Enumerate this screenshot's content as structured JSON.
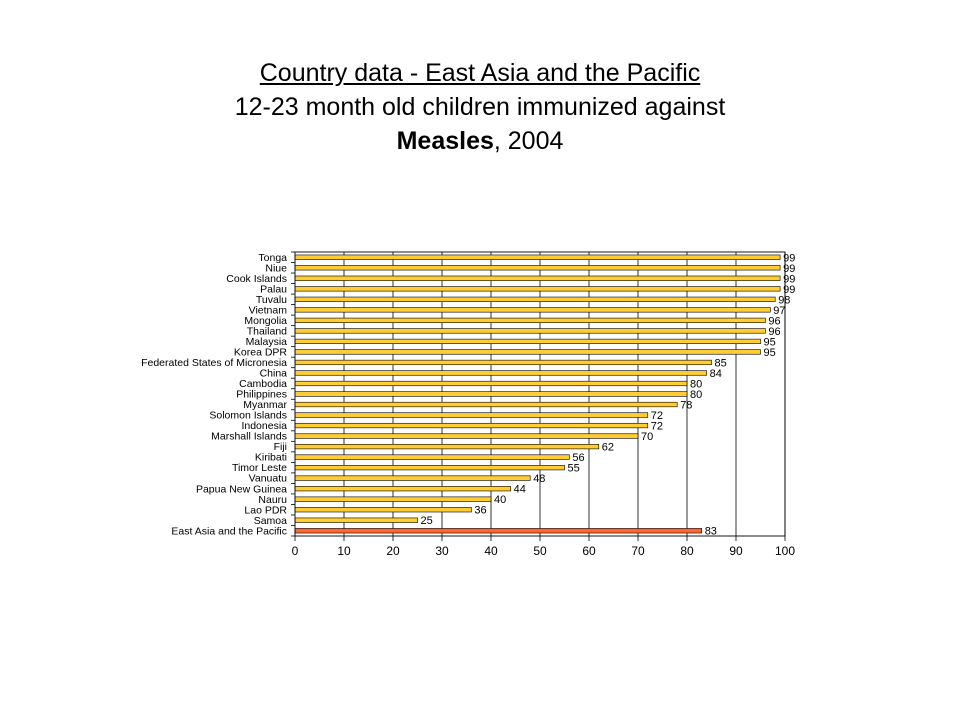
{
  "slide": {
    "title_line1": "Country data - East Asia and the Pacific",
    "title_line2": "12-23 month old children immunized against",
    "title_line3_bold": "Measles",
    "title_line3_rest": ", 2004"
  },
  "colors": {
    "bar_fill": "#ffcc33",
    "bar_highlight": "#ff6633",
    "bar_stroke": "#000000",
    "gridline": "#000000"
  },
  "chart_data": {
    "type": "bar",
    "orientation": "horizontal",
    "categories": [
      "Tonga",
      "Niue",
      "Cook Islands",
      "Palau",
      "Tuvalu",
      "Vietnam",
      "Mongolia",
      "Thailand",
      "Malaysia",
      "Korea DPR",
      "Federated States of Micronesia",
      "China",
      "Cambodia",
      "Philippines",
      "Myanmar",
      "Solomon Islands",
      "Indonesia",
      "Marshall Islands",
      "Fiji",
      "Kiribati",
      "Timor Leste",
      "Vanuatu",
      "Papua New Guinea",
      "Nauru",
      "Lao PDR",
      "Samoa",
      "East Asia and the Pacific"
    ],
    "values": [
      99,
      99,
      99,
      99,
      98,
      97,
      96,
      96,
      95,
      95,
      85,
      84,
      80,
      80,
      78,
      72,
      72,
      70,
      62,
      56,
      55,
      48,
      44,
      40,
      36,
      25,
      83
    ],
    "highlight_category": "East Asia and the Pacific",
    "xlim": [
      0,
      100
    ],
    "xticks": [
      0,
      10,
      20,
      30,
      40,
      50,
      60,
      70,
      80,
      90,
      100
    ],
    "grid": "vertical",
    "legend": "none",
    "data_labels": true
  }
}
